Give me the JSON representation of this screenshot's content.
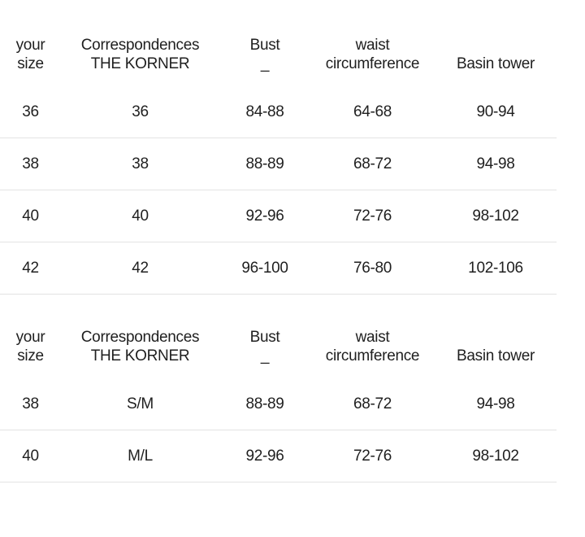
{
  "page": {
    "background_color": "#ffffff",
    "text_color": "#1f1f1f",
    "divider_color": "#e3e3e3"
  },
  "tables": [
    {
      "name": "numeric-sizes-table",
      "columns": [
        {
          "key": "your-size",
          "lines": [
            "your",
            "size"
          ]
        },
        {
          "key": "correspondences-the-korner",
          "lines": [
            "Correspondences",
            "THE KORNER"
          ]
        },
        {
          "key": "bust",
          "lines": [
            "Bust",
            "_"
          ]
        },
        {
          "key": "waist-circumference",
          "lines": [
            "waist",
            "circumference"
          ]
        },
        {
          "key": "basin-tower",
          "lines": [
            "Basin tower"
          ]
        }
      ],
      "rows": [
        [
          "36",
          "36",
          "84-88",
          "64-68",
          "90-94"
        ],
        [
          "38",
          "38",
          "88-89",
          "68-72",
          "94-98"
        ],
        [
          "40",
          "40",
          "92-96",
          "72-76",
          "98-102"
        ],
        [
          "42",
          "42",
          "96-100",
          "76-80",
          "102-106"
        ]
      ]
    },
    {
      "name": "letter-sizes-table",
      "columns": [
        {
          "key": "your-size",
          "lines": [
            "your",
            "size"
          ]
        },
        {
          "key": "correspondences-the-korner",
          "lines": [
            "Correspondences",
            "THE KORNER"
          ]
        },
        {
          "key": "bust",
          "lines": [
            "Bust",
            "_"
          ]
        },
        {
          "key": "waist-circumference",
          "lines": [
            "waist",
            "circumference"
          ]
        },
        {
          "key": "basin-tower",
          "lines": [
            "Basin tower"
          ]
        }
      ],
      "rows": [
        [
          "38",
          "S/M",
          "88-89",
          "68-72",
          "94-98"
        ],
        [
          "40",
          "M/L",
          "92-96",
          "72-76",
          "98-102"
        ]
      ]
    }
  ]
}
